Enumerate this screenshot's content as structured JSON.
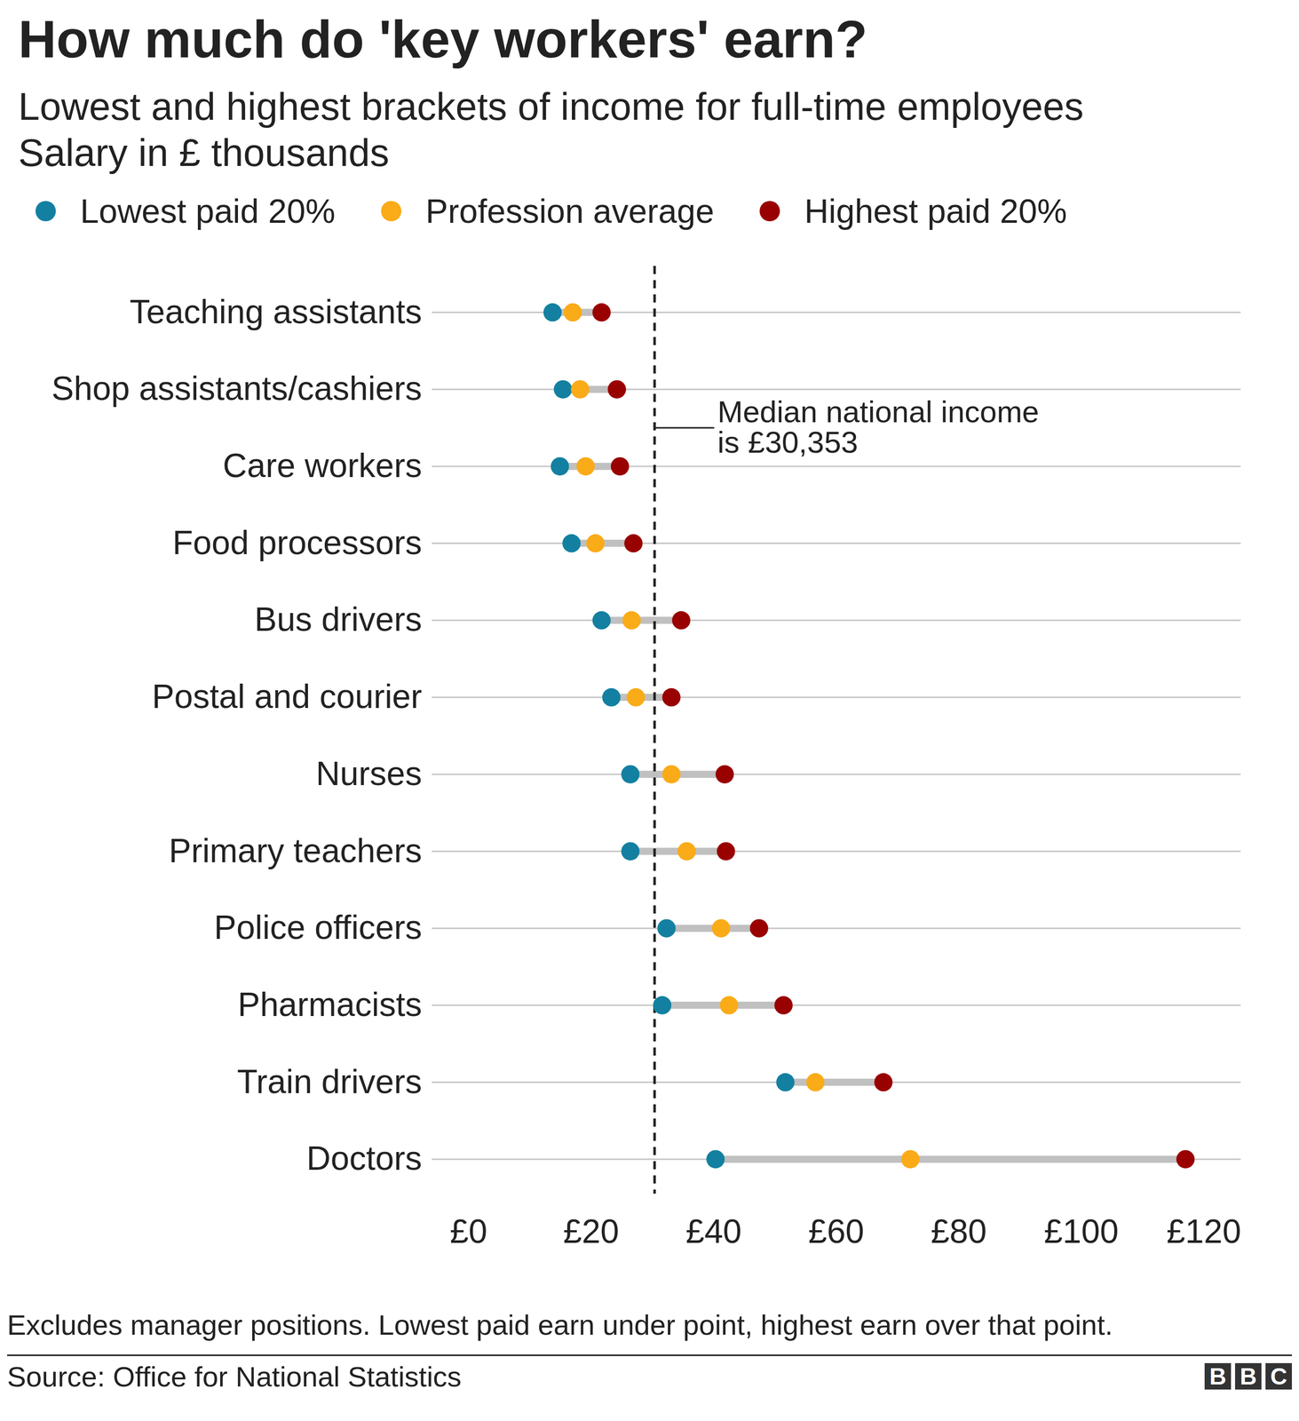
{
  "chart_data": {
    "type": "dot",
    "orientation": "horizontal",
    "title": "How much do 'key workers' earn?",
    "subtitle": "Lowest and highest brackets of income for full-time employees\nSalary in £ thousands",
    "categories": [
      "Teaching assistants",
      "Shop assistants/cashiers",
      "Care workers",
      "Food processors",
      "Bus drivers",
      "Postal and courier",
      "Nurses",
      "Primary teachers",
      "Police officers",
      "Pharmacists",
      "Train drivers",
      "Doctors"
    ],
    "series": [
      {
        "name": "Lowest paid 20%",
        "color": "#1380a1",
        "values": [
          13.7,
          15.4,
          14.9,
          16.8,
          21.7,
          23.3,
          26.4,
          26.4,
          32.3,
          31.6,
          51.7,
          40.3
        ]
      },
      {
        "name": "Profession average",
        "color": "#faab18",
        "values": [
          17.0,
          18.2,
          19.1,
          20.7,
          26.6,
          27.3,
          33.1,
          35.6,
          41.2,
          42.5,
          56.6,
          72.1
        ]
      },
      {
        "name": "Highest paid 20%",
        "color": "#990000",
        "values": [
          21.7,
          24.2,
          24.7,
          26.9,
          34.7,
          33.1,
          41.8,
          42.0,
          47.4,
          51.4,
          67.7,
          117.0
        ]
      }
    ],
    "xlim": [
      0,
      120
    ],
    "xticks": [
      {
        "value": 0,
        "label": "£0"
      },
      {
        "value": 20,
        "label": "£20"
      },
      {
        "value": 40,
        "label": "£40"
      },
      {
        "value": 60,
        "label": "£60"
      },
      {
        "value": 80,
        "label": "£80"
      },
      {
        "value": 100,
        "label": "£100"
      },
      {
        "value": 120,
        "label": "£120"
      }
    ],
    "legend": "top",
    "annotations": [
      {
        "x": 30.353,
        "text": "Median national income\nis £30,353"
      }
    ],
    "note": "Excludes manager positions. Lowest paid earn under point, highest earn over that point.",
    "source": "Source: Office for National Statistics",
    "logo": "BBC"
  }
}
